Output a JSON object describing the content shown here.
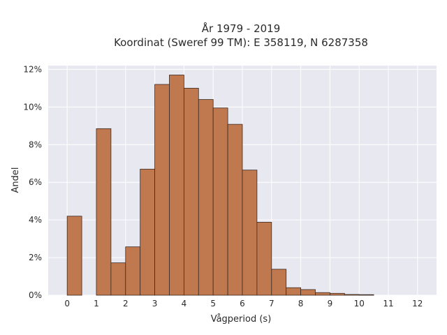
{
  "chart_data": {
    "type": "bar",
    "title_line1": "År 1979 - 2019",
    "title_line2": "Koordinat (Sweref 99 TM): E 358119, N 6287358",
    "xlabel": "Vågperiod (s)",
    "ylabel": "Andel",
    "x_ticks": [
      0,
      1,
      2,
      3,
      4,
      5,
      6,
      7,
      8,
      9,
      10,
      11,
      12
    ],
    "x_tick_labels": [
      "0",
      "1",
      "2",
      "3",
      "4",
      "5",
      "6",
      "7",
      "8",
      "9",
      "10",
      "11",
      "12"
    ],
    "y_ticks": [
      0,
      2,
      4,
      6,
      8,
      10,
      12
    ],
    "y_tick_labels": [
      "0%",
      "2%",
      "4%",
      "6%",
      "8%",
      "10%",
      "12%"
    ],
    "xlim": [
      -0.65,
      12.65
    ],
    "ylim": [
      0,
      12.2
    ],
    "bin_width": 0.5,
    "bins": [
      {
        "start": 0.0,
        "value": 4.2
      },
      {
        "start": 1.0,
        "value": 8.85
      },
      {
        "start": 1.5,
        "value": 1.72
      },
      {
        "start": 2.0,
        "value": 2.57
      },
      {
        "start": 2.5,
        "value": 6.7
      },
      {
        "start": 3.0,
        "value": 11.2
      },
      {
        "start": 3.5,
        "value": 11.7
      },
      {
        "start": 4.0,
        "value": 11.0
      },
      {
        "start": 4.5,
        "value": 10.4
      },
      {
        "start": 5.0,
        "value": 9.95
      },
      {
        "start": 5.5,
        "value": 9.08
      },
      {
        "start": 6.0,
        "value": 6.65
      },
      {
        "start": 6.5,
        "value": 3.88
      },
      {
        "start": 7.0,
        "value": 1.38
      },
      {
        "start": 7.5,
        "value": 0.4
      },
      {
        "start": 8.0,
        "value": 0.3
      },
      {
        "start": 8.5,
        "value": 0.14
      },
      {
        "start": 9.0,
        "value": 0.1
      },
      {
        "start": 9.5,
        "value": 0.04
      },
      {
        "start": 10.0,
        "value": 0.03
      }
    ],
    "colors": {
      "bar": "#c0784f",
      "plot_bg": "#e8e8f0"
    },
    "grid": true
  }
}
